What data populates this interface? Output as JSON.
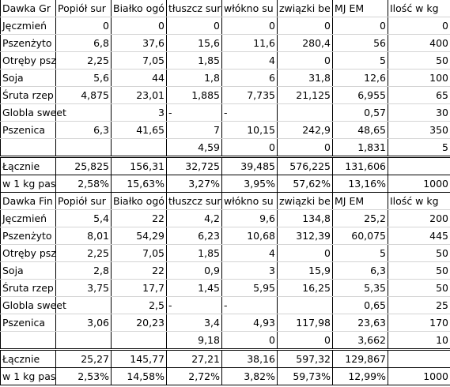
{
  "sections": [
    {
      "header": [
        "Dawka Gr",
        "Popiół sur",
        "Białko ogó",
        "tłuszcz sur",
        "włókno su",
        "związki be",
        "MJ EM",
        "Ilość w kg"
      ],
      "rows": [
        [
          "Jęczmień",
          "0",
          "0",
          "0",
          "0",
          "0",
          "0",
          "0"
        ],
        [
          "Pszenżyto",
          "6,8",
          "37,6",
          "15,6",
          "11,6",
          "280,4",
          "56",
          "400"
        ],
        [
          "Otręby psz",
          "2,25",
          "7,05",
          "1,85",
          "4",
          "0",
          "5",
          "50"
        ],
        [
          "Soja",
          "5,6",
          "44",
          "1,8",
          "6",
          "31,8",
          "12,6",
          "100"
        ],
        [
          "Śruta rzep",
          "4,875",
          "23,01",
          "1,885",
          "7,735",
          "21,125",
          "6,955",
          "65"
        ],
        [
          "Globla sweet",
          null,
          "3",
          "-",
          "-",
          null,
          "0,57",
          "30"
        ],
        [
          "Pszenica",
          "6,3",
          "41,65",
          "7",
          "10,15",
          "242,9",
          "48,65",
          "350"
        ],
        [
          null,
          null,
          null,
          "4,59",
          "0",
          "0",
          "1,831",
          "5"
        ]
      ],
      "totals": [
        [
          "Łącznie",
          "25,825",
          "156,31",
          "32,725",
          "39,485",
          "576,225",
          "131,606",
          null
        ],
        [
          "w 1 kg pas",
          "2,58%",
          "15,63%",
          "3,27%",
          "3,95%",
          "57,62%",
          "13,16%",
          "1000"
        ]
      ]
    },
    {
      "header": [
        "Dawka Fin",
        "Popiół sur",
        "Białko ogó",
        "tłuszcz sur",
        "włókno su",
        "związki be",
        "MJ EM",
        "Ilość w kg"
      ],
      "rows": [
        [
          "Jęczmień",
          "5,4",
          "22",
          "4,2",
          "9,6",
          "134,8",
          "25,2",
          "200"
        ],
        [
          "Pszenżyto",
          "8,01",
          "54,29",
          "6,23",
          "10,68",
          "312,39",
          "60,075",
          "445"
        ],
        [
          "Otręby psz",
          "2,25",
          "7,05",
          "1,85",
          "4",
          "0",
          "5",
          "50"
        ],
        [
          "Soja",
          "2,8",
          "22",
          "0,9",
          "3",
          "15,9",
          "6,3",
          "50"
        ],
        [
          "Śruta rzep",
          "3,75",
          "17,7",
          "1,45",
          "5,95",
          "16,25",
          "5,35",
          "50"
        ],
        [
          "Globla sweet",
          null,
          "2,5",
          "-",
          "-",
          null,
          "0,65",
          "25"
        ],
        [
          "Pszenica",
          "3,06",
          "20,23",
          "3,4",
          "4,93",
          "117,98",
          "23,63",
          "170"
        ],
        [
          null,
          null,
          null,
          "9,18",
          "0",
          "0",
          "3,662",
          "10"
        ]
      ],
      "totals": [
        [
          "Łącznie",
          "25,27",
          "145,77",
          "27,21",
          "38,16",
          "597,32",
          "129,867",
          null
        ],
        [
          "w 1 kg pas",
          "2,53%",
          "14,58%",
          "2,72%",
          "3,82%",
          "59,73%",
          "12,99%",
          "1000"
        ]
      ]
    }
  ]
}
